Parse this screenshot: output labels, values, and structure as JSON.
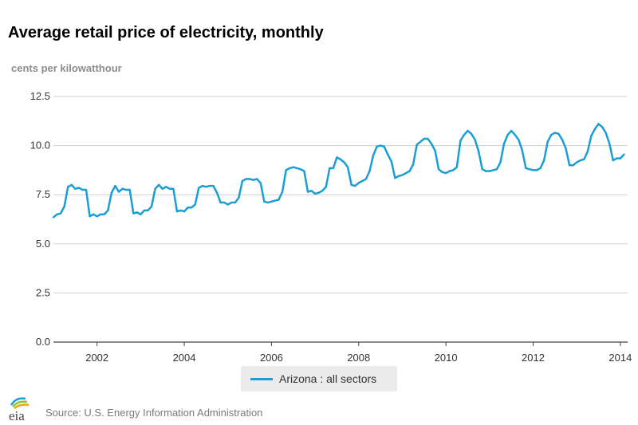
{
  "title": "Average retail price of electricity, monthly",
  "colors": {
    "series": "#1a9ed6",
    "grid": "#d0d0d0",
    "axis": "#333333"
  },
  "footer": {
    "source": "Source: U.S. Energy Information Administration",
    "logo_text": "eia",
    "logo_icon": "eia-logo-icon"
  },
  "chart_data": {
    "type": "line",
    "title": "Average retail price of electricity, monthly",
    "ylabel": "cents per kilowatthour",
    "xlabel": "",
    "ylim": [
      0,
      12.5
    ],
    "yticks": [
      "0.0",
      "2.5",
      "5.0",
      "7.5",
      "10.0",
      "12.5"
    ],
    "xticks": [
      "2002",
      "2004",
      "2006",
      "2008",
      "2010",
      "2012",
      "2014"
    ],
    "xlim": [
      "2001-01",
      "2014-03"
    ],
    "grid": true,
    "legend_position": "bottom-center",
    "series": [
      {
        "name": "Arizona : all sectors",
        "start": "2001-01",
        "frequency": "monthly",
        "values": [
          6.35,
          6.5,
          6.55,
          6.9,
          7.9,
          8.0,
          7.8,
          7.85,
          7.75,
          7.75,
          6.4,
          6.5,
          6.4,
          6.5,
          6.5,
          6.7,
          7.6,
          7.95,
          7.65,
          7.8,
          7.75,
          7.75,
          6.55,
          6.6,
          6.5,
          6.7,
          6.7,
          6.9,
          7.8,
          8.0,
          7.8,
          7.9,
          7.8,
          7.8,
          6.65,
          6.7,
          6.65,
          6.85,
          6.85,
          7.0,
          7.85,
          7.95,
          7.9,
          7.95,
          7.95,
          7.6,
          7.1,
          7.1,
          7.0,
          7.1,
          7.1,
          7.35,
          8.2,
          8.3,
          8.3,
          8.25,
          8.3,
          8.1,
          7.15,
          7.1,
          7.15,
          7.2,
          7.25,
          7.65,
          8.75,
          8.85,
          8.9,
          8.85,
          8.8,
          8.7,
          7.65,
          7.7,
          7.55,
          7.6,
          7.7,
          7.9,
          8.85,
          8.85,
          9.4,
          9.3,
          9.15,
          8.9,
          8.0,
          7.95,
          8.1,
          8.2,
          8.3,
          8.7,
          9.5,
          9.95,
          10.0,
          9.95,
          9.55,
          9.2,
          8.35,
          8.45,
          8.5,
          8.6,
          8.7,
          9.05,
          10.05,
          10.2,
          10.35,
          10.35,
          10.1,
          9.75,
          8.8,
          8.65,
          8.6,
          8.7,
          8.75,
          8.9,
          10.25,
          10.55,
          10.75,
          10.6,
          10.3,
          9.7,
          8.8,
          8.7,
          8.7,
          8.75,
          8.8,
          9.15,
          10.1,
          10.55,
          10.75,
          10.55,
          10.3,
          9.75,
          8.85,
          8.8,
          8.75,
          8.75,
          8.85,
          9.25,
          10.2,
          10.55,
          10.65,
          10.6,
          10.3,
          9.85,
          9.0,
          9.0,
          9.15,
          9.25,
          9.3,
          9.7,
          10.5,
          10.85,
          11.1,
          10.95,
          10.65,
          10.1,
          9.25,
          9.35,
          9.35,
          9.55
        ]
      }
    ]
  }
}
